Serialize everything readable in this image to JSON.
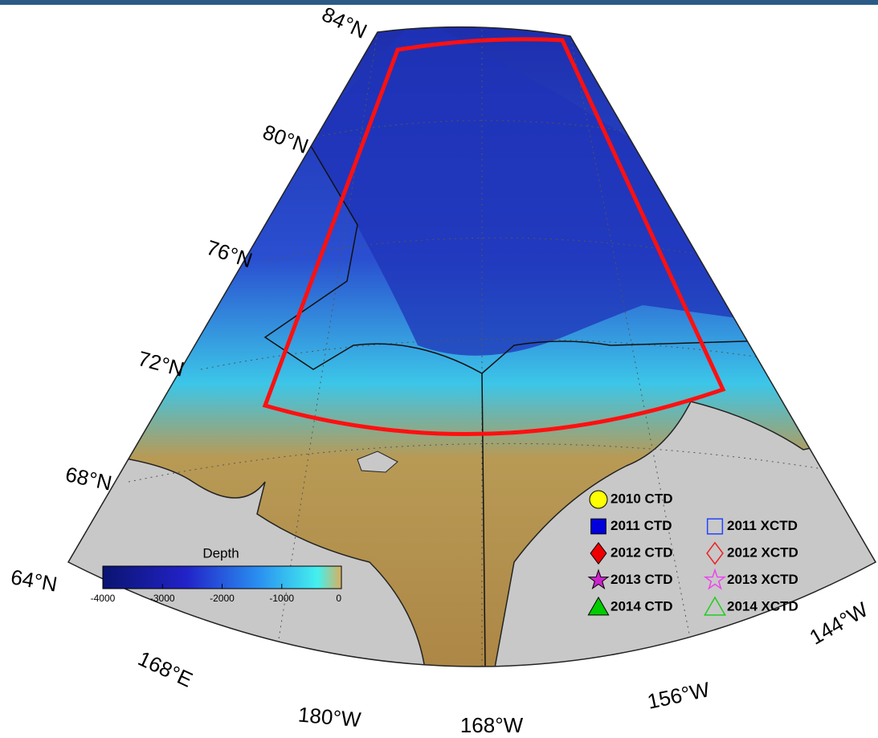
{
  "map": {
    "latitude_labels": [
      "84°N",
      "80°N",
      "76°N",
      "72°N",
      "68°N",
      "64°N"
    ],
    "longitude_labels": [
      "168°E",
      "180°W",
      "168°W",
      "156°W",
      "144°W"
    ]
  },
  "colorbar": {
    "title": "Depth",
    "lim": [
      -4000,
      0
    ],
    "ticks": [
      -4000,
      -3000,
      -2000,
      -1000,
      0
    ]
  },
  "legend": [
    {
      "label": "2010 CTD",
      "marker": "circle",
      "color": "#ffff00",
      "filled": true
    },
    {
      "label": "2011 CTD",
      "marker": "square",
      "color": "#0000dd",
      "filled": true
    },
    {
      "label": "2011 XCTD",
      "marker": "square",
      "color": "#2244ff",
      "filled": false
    },
    {
      "label": "2012 CTD",
      "marker": "diamond",
      "color": "#ee0000",
      "filled": true
    },
    {
      "label": "2012 XCTD",
      "marker": "diamond",
      "color": "#ee2222",
      "filled": false
    },
    {
      "label": "2013 CTD",
      "marker": "star",
      "color": "#cc22cc",
      "filled": true
    },
    {
      "label": "2013 XCTD",
      "marker": "star",
      "color": "#ee44ee",
      "filled": false
    },
    {
      "label": "2014 CTD",
      "marker": "triangle",
      "color": "#00cc00",
      "filled": true
    },
    {
      "label": "2014 XCTD",
      "marker": "triangle",
      "color": "#22cc22",
      "filled": false
    }
  ]
}
